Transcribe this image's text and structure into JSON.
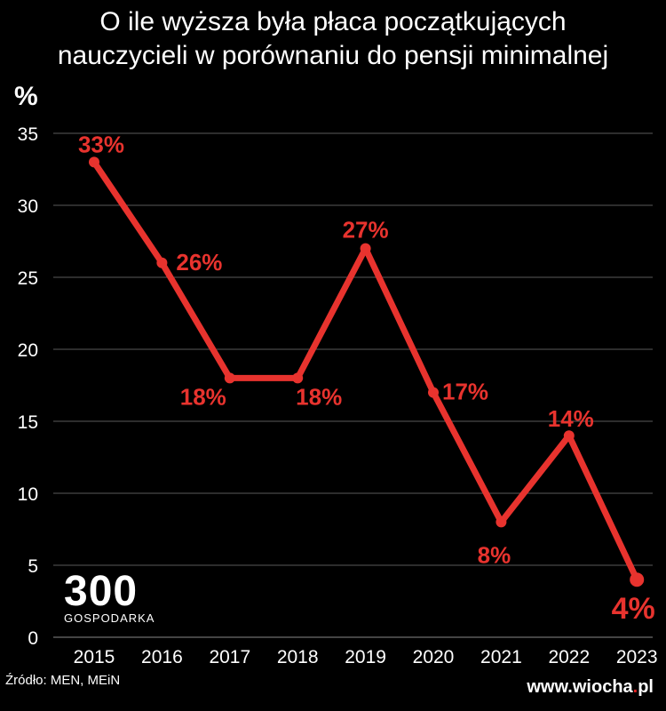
{
  "page": {
    "title_lines": [
      "O ile wyższa była płaca początkujących",
      "nauczycieli w porównaniu do pensji minimalnej"
    ],
    "source": "Źródło: MEN, MEiN",
    "logo": {
      "mark": "300",
      "sub": "GOSPODARKA"
    },
    "watermark": {
      "prefix": "www.wiocha",
      "suffix": "pl",
      "separator": "."
    }
  },
  "colors": {
    "background": "#000000",
    "series": "#e8332e",
    "grid": "#5a5a5a",
    "text": "#ffffff"
  },
  "chart_data": {
    "type": "line",
    "title": "O ile wyższa była płaca początkujących nauczycieli w porównaniu do pensji minimalnej",
    "ylabel": "%",
    "xlabel": "",
    "ylim": [
      0,
      35
    ],
    "yticks": [
      0,
      5,
      10,
      15,
      20,
      25,
      30,
      35
    ],
    "grid": true,
    "legend": "none",
    "categories": [
      "2015",
      "2016",
      "2017",
      "2018",
      "2019",
      "2020",
      "2021",
      "2022",
      "2023"
    ],
    "series": [
      {
        "values": [
          33,
          26,
          18,
          18,
          27,
          17,
          8,
          14,
          4
        ],
        "labels": [
          "33%",
          "26%",
          "18%",
          "18%",
          "27%",
          "17%",
          "8%",
          "14%",
          "4%"
        ]
      }
    ]
  }
}
